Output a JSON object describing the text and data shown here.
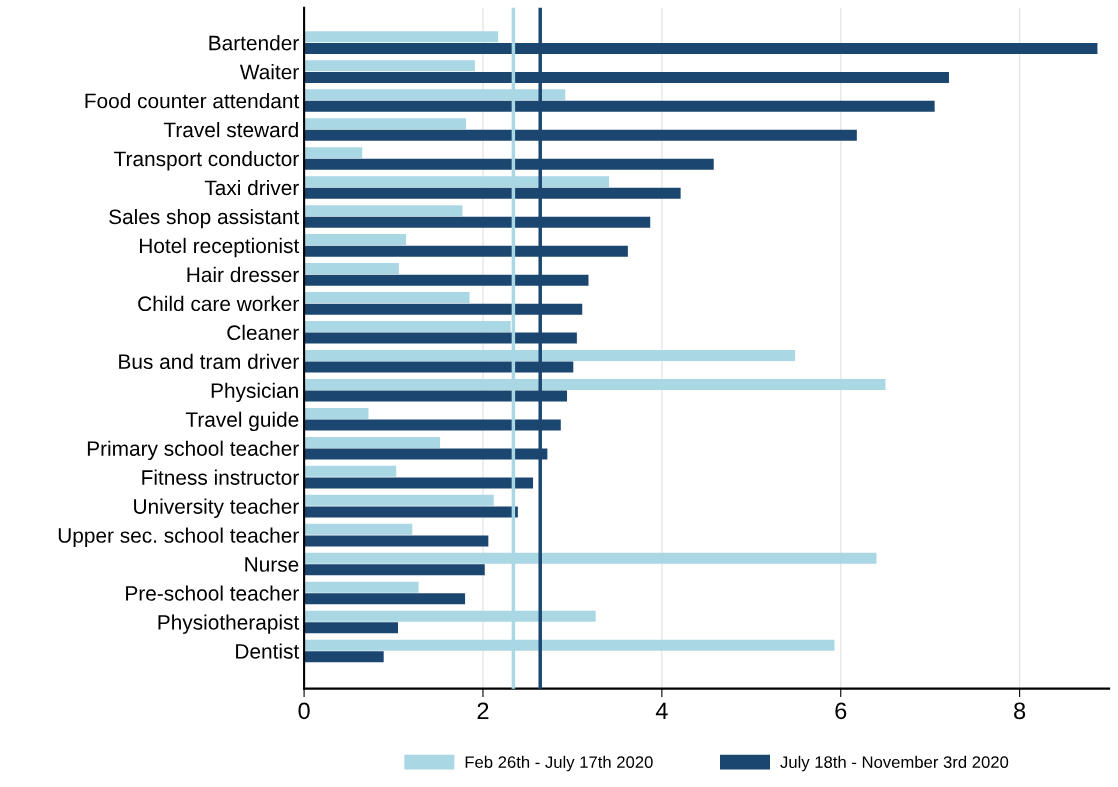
{
  "chart_data": {
    "type": "bar",
    "orientation": "horizontal",
    "categories": [
      "Bartender",
      "Waiter",
      "Food counter attendant",
      "Travel steward",
      "Transport conductor",
      "Taxi driver",
      "Sales shop assistant",
      "Hotel receptionist",
      "Hair dresser",
      "Child care worker",
      "Cleaner",
      "Bus and tram driver",
      "Physician",
      "Travel guide",
      "Primary school teacher",
      "Fitness instructor",
      "University teacher",
      "Upper sec. school teacher",
      "Nurse",
      "Pre-school teacher",
      "Physiotherapist",
      "Dentist"
    ],
    "series": [
      {
        "name": "Feb 26th - July 17th 2020",
        "color": "#a9d7e4",
        "values": [
          2.17,
          1.91,
          2.92,
          1.81,
          0.65,
          3.41,
          1.77,
          1.14,
          1.06,
          1.85,
          2.31,
          5.49,
          6.5,
          0.72,
          1.52,
          1.03,
          2.12,
          1.21,
          6.4,
          1.28,
          3.26,
          5.93
        ]
      },
      {
        "name": "July 18th - November 3rd 2020",
        "color": "#1b4670",
        "values": [
          8.87,
          7.21,
          7.05,
          6.18,
          4.58,
          4.21,
          3.87,
          3.62,
          3.18,
          3.11,
          3.05,
          3.01,
          2.94,
          2.87,
          2.72,
          2.56,
          2.39,
          2.06,
          2.02,
          1.8,
          1.05,
          0.89
        ]
      }
    ],
    "ref_lines": [
      {
        "axis": "x",
        "value": 2.34,
        "color": "#a9d7e4"
      },
      {
        "axis": "x",
        "value": 2.64,
        "color": "#1b4670"
      }
    ],
    "xlim": [
      0,
      9
    ],
    "xticks": [
      0,
      2,
      4,
      6,
      8
    ],
    "grid": "x",
    "legend": "bottom"
  }
}
